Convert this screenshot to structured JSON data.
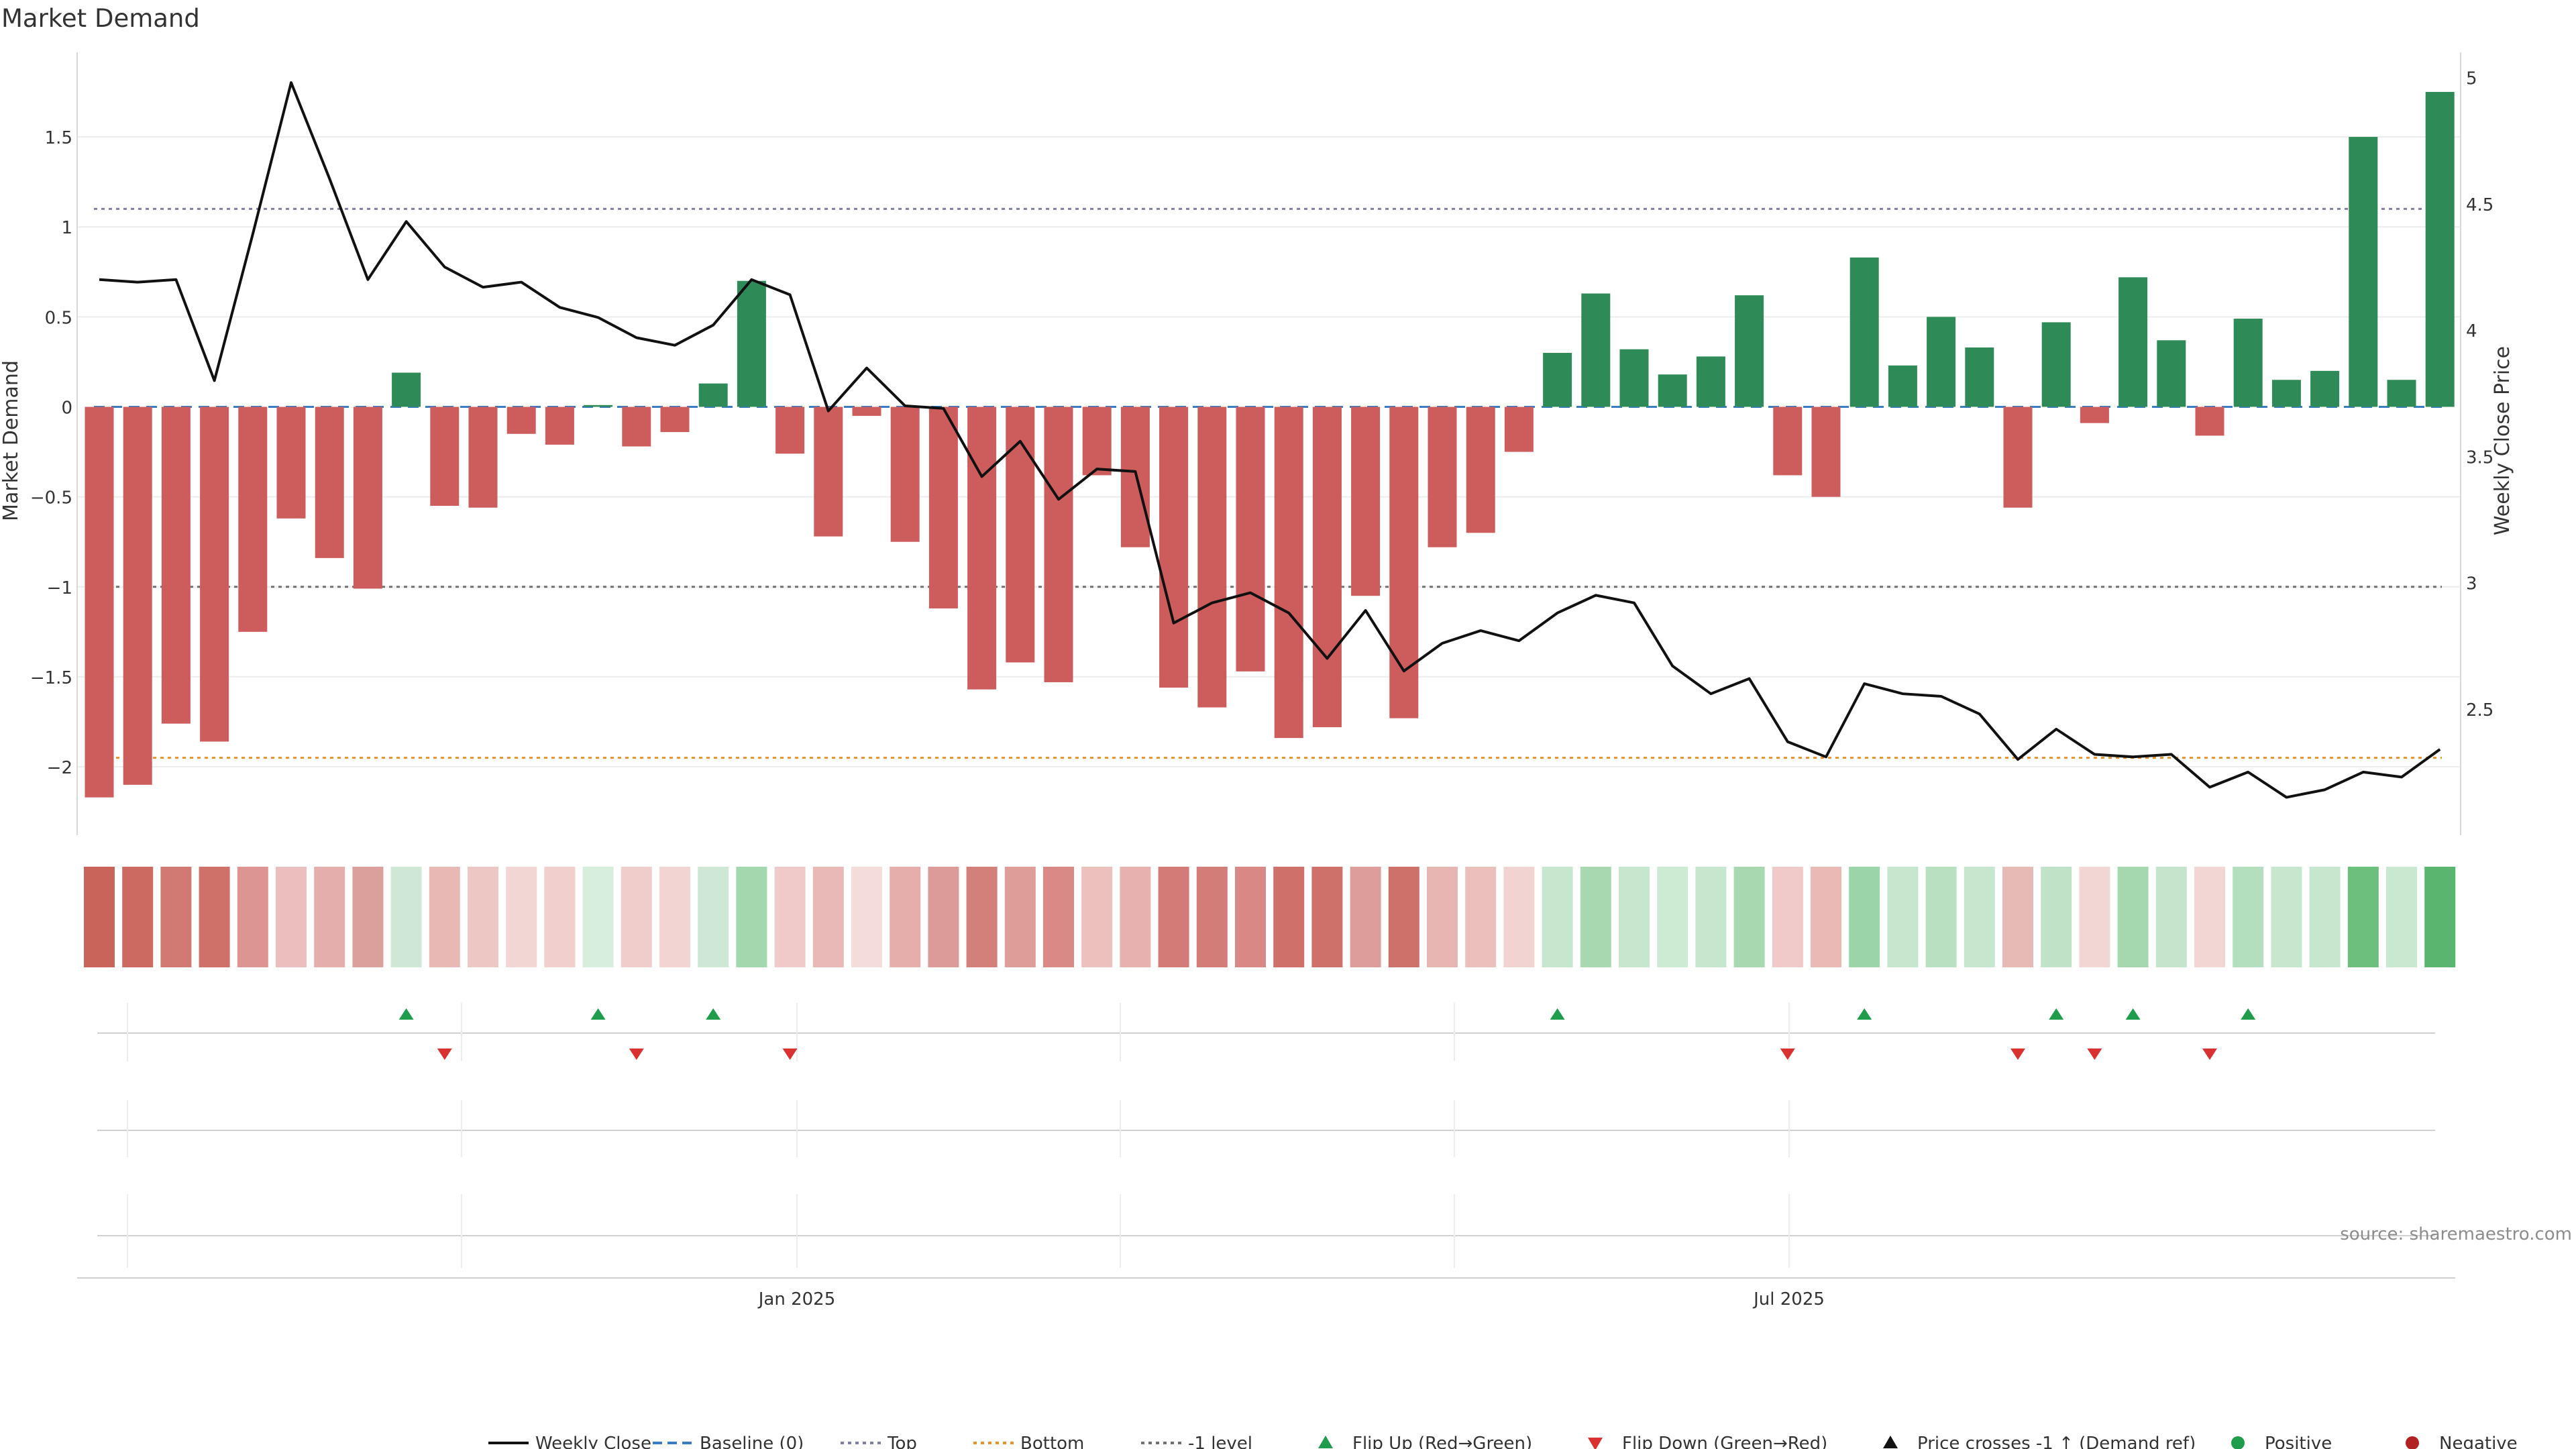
{
  "chart_data": {
    "type": "bar",
    "title": "Market Demand",
    "ylabel": "Market Demand",
    "y2label": "Weekly Close Price",
    "source": "source: sharemaestro.com",
    "ylim": [
      -2.38,
      1.97
    ],
    "y2lim": [
      2.0,
      5.1
    ],
    "yticks": [
      "1.5",
      "1",
      "0.5",
      "0",
      "−0.5",
      "−1",
      "−1.5",
      "−2"
    ],
    "ytick_values": [
      1.5,
      1,
      0.5,
      0,
      -0.5,
      -1,
      -1.5,
      -2
    ],
    "y2ticks": [
      "5",
      "4.5",
      "4",
      "3.5",
      "3",
      "2.5"
    ],
    "y2tick_values": [
      5,
      4.5,
      4,
      3.5,
      3,
      2.5
    ],
    "xticks": [
      "Jan 2025",
      "Jul 2025"
    ],
    "reference_lines": {
      "baseline": 0,
      "top": 1.1,
      "bottom": -1.95,
      "minus_one_level": -1
    },
    "legend_position": "bottom",
    "legend": [
      {
        "label": "Weekly Close",
        "kind": "line",
        "color": "#111111"
      },
      {
        "label": "Baseline (0)",
        "kind": "dash",
        "color": "#3b7dc4"
      },
      {
        "label": "Top",
        "kind": "dot",
        "color": "#8080a0"
      },
      {
        "label": "Bottom",
        "kind": "dot",
        "color": "#e8912d"
      },
      {
        "label": "-1 level",
        "kind": "dot",
        "color": "#707070"
      },
      {
        "label": "Flip Up (Red→Green)",
        "kind": "tri-up",
        "color": "#1f9c4c"
      },
      {
        "label": "Flip Down (Green→Red)",
        "kind": "tri-down",
        "color": "#d93030"
      },
      {
        "label": "Price crosses -1 ↑ (Demand ref)",
        "kind": "tri-up",
        "color": "#111111"
      },
      {
        "label": "Positive",
        "kind": "dot-marker",
        "color": "#1f9c4c"
      },
      {
        "label": "Negative",
        "kind": "dot-marker",
        "color": "#b22222"
      }
    ],
    "colors": {
      "positive": "#2e8b57",
      "negative": "#cd5c5c",
      "price": "#111111"
    },
    "demand": [
      -2.17,
      -2.1,
      -1.76,
      -1.86,
      -1.25,
      -0.62,
      -0.84,
      -1.01,
      0.19,
      -0.55,
      -0.56,
      -0.15,
      -0.21,
      0.01,
      -0.22,
      -0.14,
      0.13,
      0.7,
      -0.26,
      -0.72,
      -0.05,
      -0.75,
      -1.12,
      -1.57,
      -1.42,
      -1.53,
      -0.38,
      -0.78,
      -1.56,
      -1.67,
      -1.47,
      -1.84,
      -1.78,
      -1.05,
      -1.73,
      -0.78,
      -0.7,
      -0.25,
      0.3,
      0.63,
      0.32,
      0.18,
      0.28,
      0.62,
      -0.38,
      -0.5,
      0.83,
      0.23,
      0.5,
      0.33,
      -0.56,
      0.47,
      -0.09,
      0.72,
      0.37,
      -0.16,
      0.49,
      0.15,
      0.2,
      1.5,
      0.15,
      1.75
    ],
    "price": [
      4.2,
      4.19,
      4.2,
      3.8,
      4.38,
      4.98,
      4.6,
      4.2,
      4.43,
      4.25,
      4.17,
      4.19,
      4.09,
      4.05,
      3.97,
      3.94,
      4.02,
      4.2,
      4.14,
      3.68,
      3.85,
      3.7,
      3.69,
      3.42,
      3.56,
      3.33,
      3.45,
      3.44,
      2.84,
      2.92,
      2.96,
      2.88,
      2.7,
      2.89,
      2.65,
      2.76,
      2.81,
      2.77,
      2.88,
      2.95,
      2.92,
      2.67,
      2.56,
      2.62,
      2.37,
      2.31,
      2.6,
      2.56,
      2.55,
      2.48,
      2.3,
      2.42,
      2.32,
      2.31,
      2.32,
      2.19,
      2.25,
      2.15,
      2.18,
      2.25,
      2.23,
      2.34
    ],
    "strip": [
      "#c9645a",
      "#cc6a62",
      "#d17a73",
      "#cf7069",
      "#dd9593",
      "#ebbfbd",
      "#e4aeac",
      "#dba09c",
      "#cfe8d5",
      "#e8b8b5",
      "#edc7c4",
      "#f2d6d4",
      "#f0cfcc",
      "#d8eedd",
      "#f0cccb",
      "#f2d5d3",
      "#cfe8d5",
      "#a3d8ae",
      "#efcac8",
      "#e8b9b6",
      "#f4dcdb",
      "#e5aeab",
      "#dc9a98",
      "#d3807b",
      "#df9d9a",
      "#d98986",
      "#ebc0bd",
      "#e6b1ae",
      "#d37c77",
      "#d37d78",
      "#d88986",
      "#cf706b",
      "#cf716b",
      "#dc9d9b",
      "#cf716b",
      "#e7b6b3",
      "#eabfbc",
      "#f1d4d2",
      "#c6e6cd",
      "#a7d8b0",
      "#c6e6cd",
      "#cdebd3",
      "#c6e6cd",
      "#a7d8b0",
      "#f0cac8",
      "#eab8b5",
      "#9bd4a8",
      "#c6e6cd",
      "#b8e0c1",
      "#c6e6cd",
      "#e8bab6",
      "#c0e3c8",
      "#f2d6d4",
      "#a5d8af",
      "#c4e5cc",
      "#f2d6d4",
      "#b4dfbe",
      "#c6e6cd",
      "#c6e6cd",
      "#6dbf7e",
      "#c9e8d0",
      "#5ab56e"
    ],
    "flip_up": [
      8,
      13,
      16,
      38,
      46,
      51,
      53,
      56
    ],
    "flip_down": [
      9,
      14,
      18,
      44,
      50,
      52,
      55
    ]
  }
}
